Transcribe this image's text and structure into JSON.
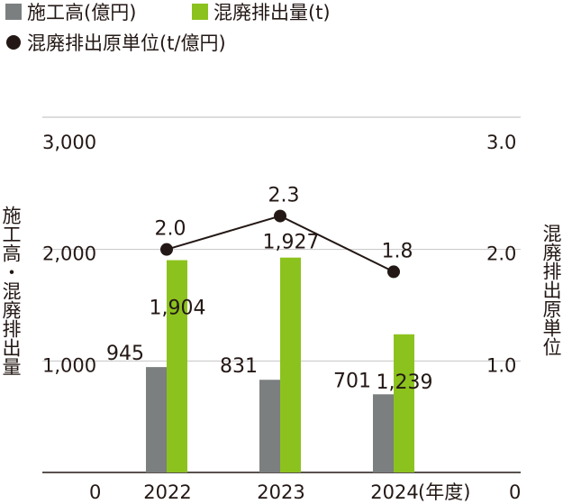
{
  "legend": {
    "construction": {
      "label": "施工高(億円)",
      "color": "#7b7f80"
    },
    "waste": {
      "label": "混廃排出量(t)",
      "color": "#8cc21e"
    },
    "intensity": {
      "label": "混廃排出原単位(t/億円)",
      "color": "#231815"
    }
  },
  "axes": {
    "left_title": "施工高・混廃排出量",
    "right_title": "混廃排出原単位",
    "left_ticks": [
      "0",
      "1,000",
      "2,000",
      "3,000"
    ],
    "right_ticks": [
      "0",
      "1.0",
      "2.0",
      "3.0"
    ],
    "x_unit": "(年度)"
  },
  "chart_data": {
    "type": "bar",
    "categories": [
      "2022",
      "2023",
      "2024"
    ],
    "series": [
      {
        "name": "施工高(億円)",
        "axis": "left",
        "kind": "bar",
        "color": "#7b7f80",
        "values": [
          945,
          831,
          701
        ],
        "labels": [
          "945",
          "831",
          "701"
        ]
      },
      {
        "name": "混廃排出量(t)",
        "axis": "left",
        "kind": "bar",
        "color": "#8cc21e",
        "values": [
          1904,
          1927,
          1239
        ],
        "labels": [
          "1,904",
          "1,927",
          "1,239"
        ]
      },
      {
        "name": "混廃排出原単位(t/億円)",
        "axis": "right",
        "kind": "line",
        "color": "#231815",
        "values": [
          2.0,
          2.3,
          1.8
        ],
        "labels": [
          "2.0",
          "2.3",
          "1.8"
        ]
      }
    ],
    "ylim_left": [
      0,
      3000
    ],
    "ylim_right": [
      0,
      3.0
    ],
    "grid": true
  }
}
